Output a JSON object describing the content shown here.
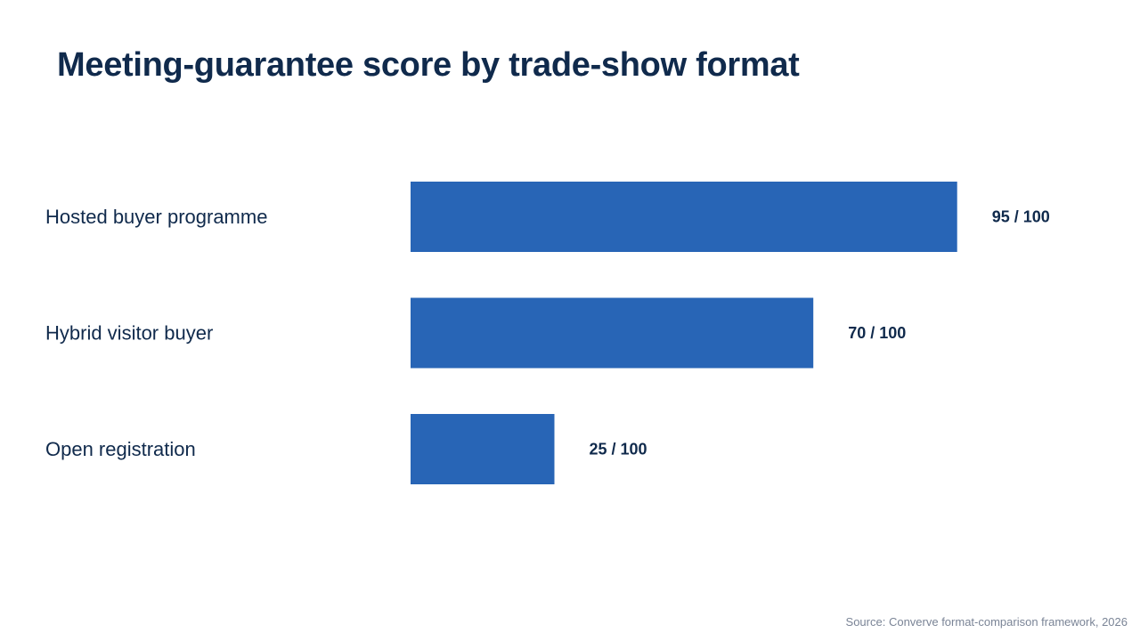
{
  "chart_data": {
    "type": "bar",
    "orientation": "horizontal",
    "title": "Meeting-guarantee score by trade-show format",
    "categories": [
      "Hosted buyer programme",
      "Hybrid visitor buyer",
      "Open registration"
    ],
    "values": [
      95,
      70,
      25
    ],
    "value_labels": [
      "95 / 100",
      "70 / 100",
      "25 / 100"
    ],
    "xlim": [
      0,
      100
    ],
    "grid": false,
    "legend": "none",
    "bar_color": "#2865b6"
  },
  "source": "Source: Converve format-comparison framework, 2026"
}
